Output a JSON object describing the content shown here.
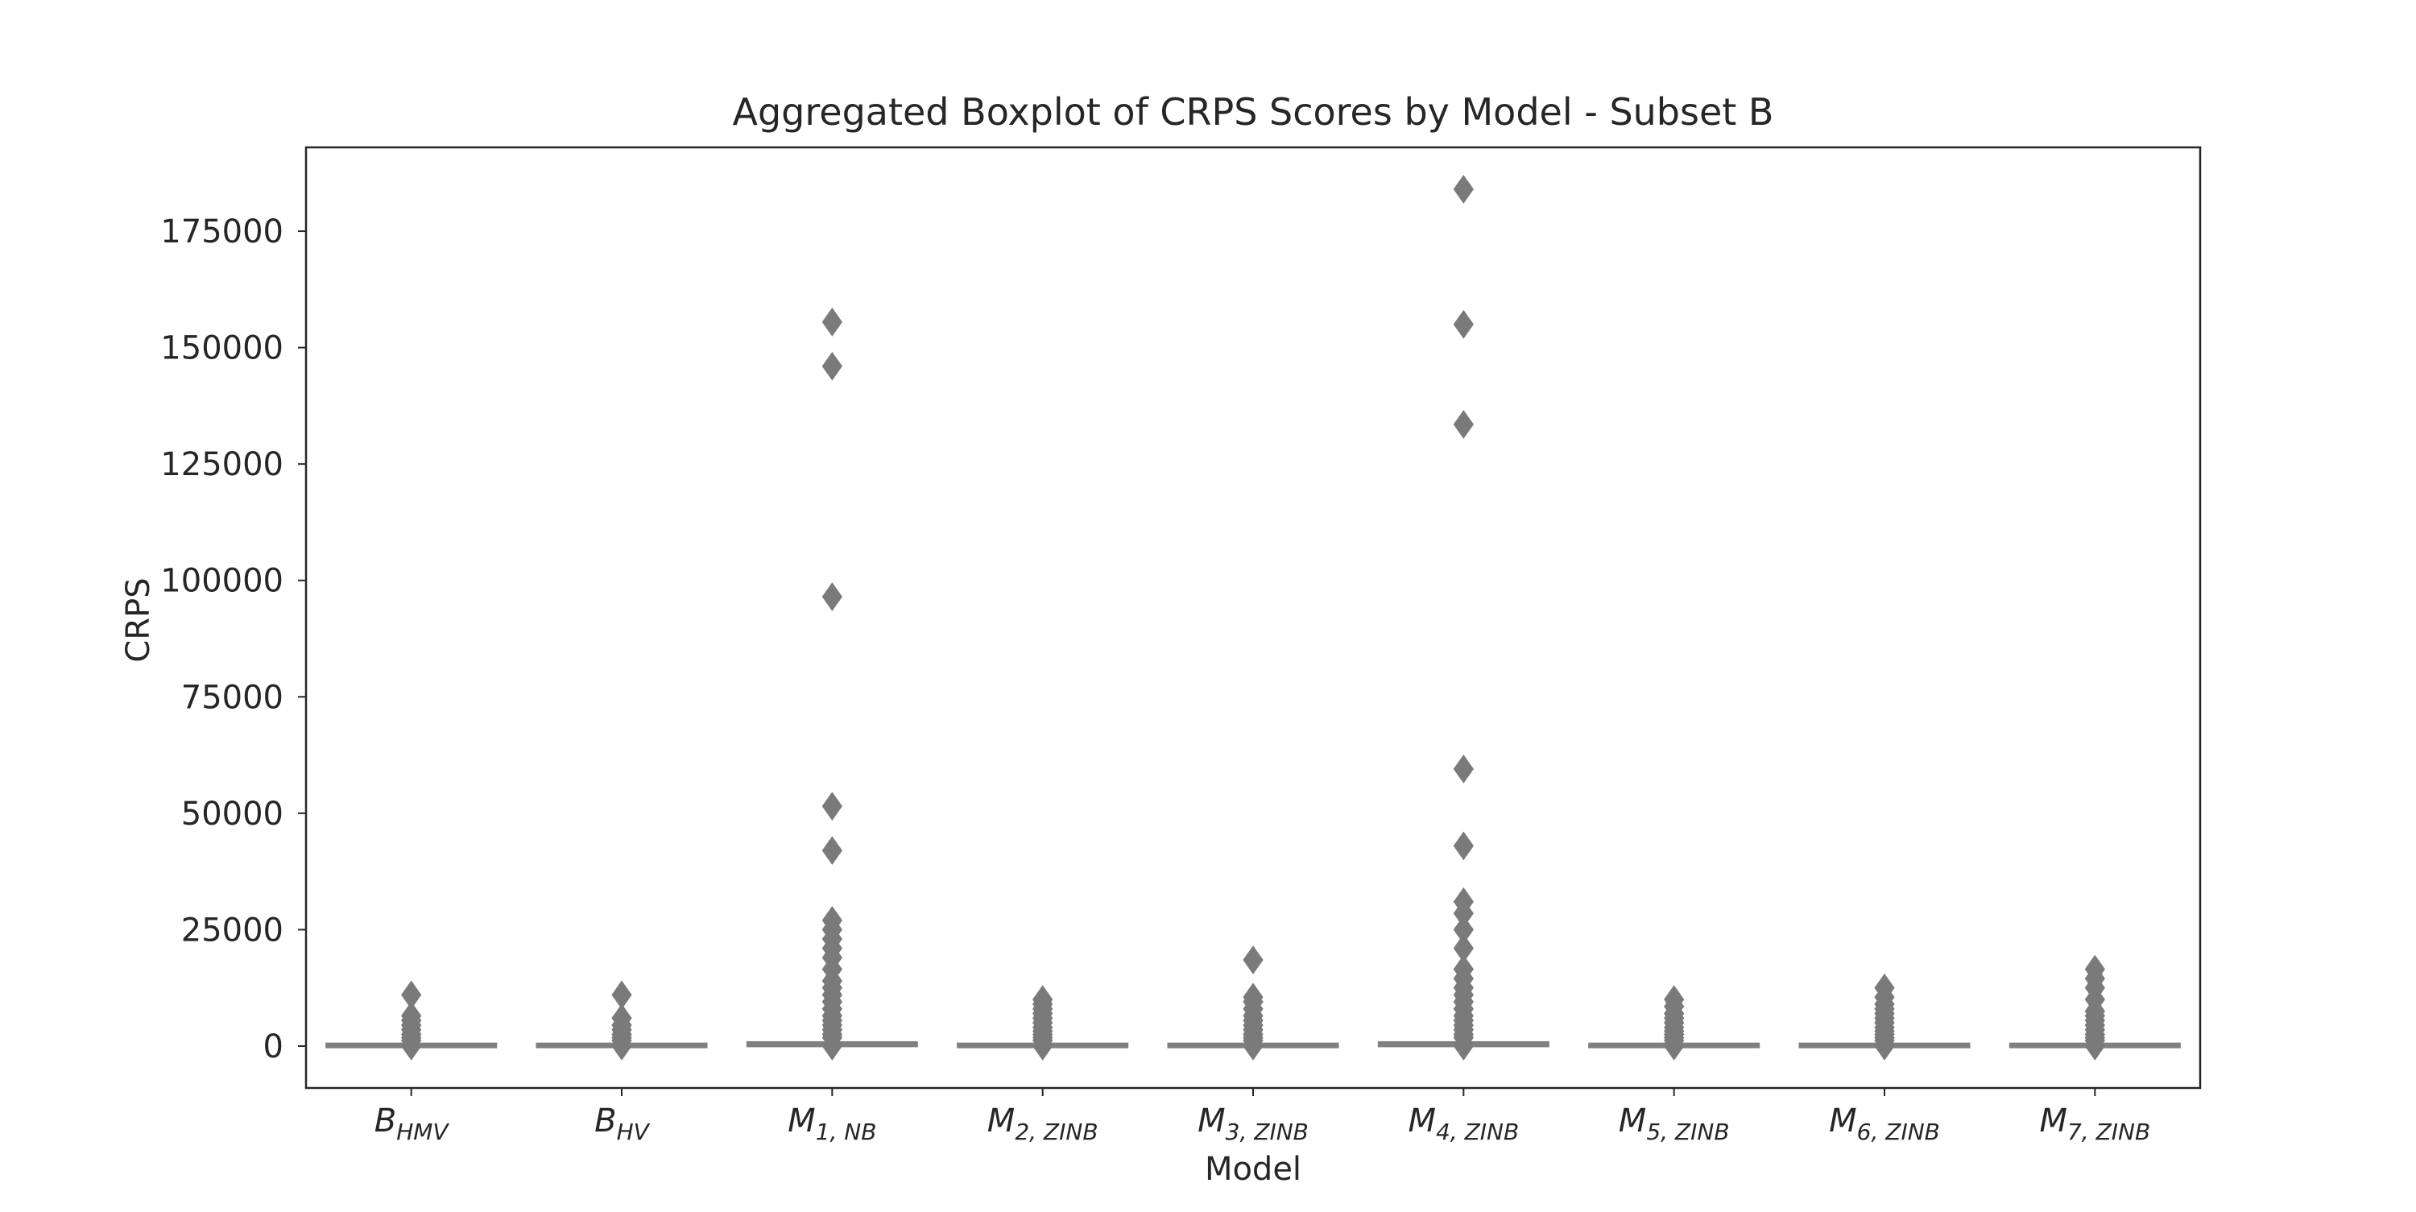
{
  "chart_data": {
    "type": "boxplot",
    "title": "Aggregated Boxplot of CRPS Scores by Model - Subset B",
    "xlabel": "Model",
    "ylabel": "CRPS",
    "ylim": [
      -9000,
      193000
    ],
    "yticks": [
      0,
      25000,
      50000,
      75000,
      100000,
      125000,
      150000,
      175000
    ],
    "grid": false,
    "colors": {
      "box": "#808080",
      "outlier": "#7a7a7a",
      "axis": "#262626"
    },
    "categories": [
      {
        "base": "B",
        "sub": "HMV"
      },
      {
        "base": "B",
        "sub": "HV"
      },
      {
        "base": "M",
        "sub": "1, NB"
      },
      {
        "base": "M",
        "sub": "2, ZINB"
      },
      {
        "base": "M",
        "sub": "3, ZINB"
      },
      {
        "base": "M",
        "sub": "4, ZINB"
      },
      {
        "base": "M",
        "sub": "5, ZINB"
      },
      {
        "base": "M",
        "sub": "6, ZINB"
      },
      {
        "base": "M",
        "sub": "7, ZINB"
      }
    ],
    "series": [
      {
        "q1": 50,
        "median": 150,
        "q3": 400,
        "whisker_low": 0,
        "whisker_high": 900,
        "outliers": [
          0,
          1200,
          1800,
          2500,
          3500,
          4500,
          5500,
          6500,
          11000
        ]
      },
      {
        "q1": 50,
        "median": 150,
        "q3": 400,
        "whisker_low": 0,
        "whisker_high": 900,
        "outliers": [
          0,
          1200,
          1800,
          2500,
          3500,
          4500,
          6000,
          11000
        ]
      },
      {
        "q1": 100,
        "median": 300,
        "q3": 700,
        "whisker_low": 0,
        "whisker_high": 1500,
        "outliers": [
          0,
          1800,
          2500,
          3500,
          4500,
          5500,
          6500,
          8000,
          9500,
          11000,
          12500,
          14000,
          16500,
          19000,
          21000,
          23000,
          25000,
          27000,
          42000,
          51500,
          96500,
          146000,
          155500
        ]
      },
      {
        "q1": 50,
        "median": 150,
        "q3": 400,
        "whisker_low": 0,
        "whisker_high": 900,
        "outliers": [
          0,
          1200,
          1800,
          2500,
          3200,
          4000,
          5000,
          6000,
          7000,
          8000,
          9000,
          10000
        ]
      },
      {
        "q1": 50,
        "median": 150,
        "q3": 400,
        "whisker_low": 0,
        "whisker_high": 900,
        "outliers": [
          0,
          1200,
          1800,
          2500,
          3500,
          4500,
          5500,
          6500,
          8000,
          9500,
          10500,
          18500
        ]
      },
      {
        "q1": 100,
        "median": 300,
        "q3": 700,
        "whisker_low": 0,
        "whisker_high": 1500,
        "outliers": [
          0,
          1800,
          2500,
          3500,
          4500,
          5500,
          6500,
          8000,
          9500,
          11000,
          12500,
          14500,
          16500,
          21000,
          25000,
          28500,
          31000,
          43000,
          59500,
          133500,
          155000,
          184000
        ]
      },
      {
        "q1": 50,
        "median": 150,
        "q3": 400,
        "whisker_low": 0,
        "whisker_high": 900,
        "outliers": [
          0,
          1200,
          1800,
          2500,
          3200,
          4000,
          5000,
          6000,
          7000,
          8500,
          10000
        ]
      },
      {
        "q1": 50,
        "median": 150,
        "q3": 400,
        "whisker_low": 0,
        "whisker_high": 900,
        "outliers": [
          0,
          1200,
          1800,
          2500,
          3200,
          4000,
          5000,
          6000,
          7000,
          8000,
          9000,
          10500,
          12500
        ]
      },
      {
        "q1": 50,
        "median": 150,
        "q3": 400,
        "whisker_low": 0,
        "whisker_high": 900,
        "outliers": [
          0,
          1200,
          1800,
          2500,
          3500,
          4500,
          5500,
          6500,
          7500,
          10000,
          12500,
          14500,
          16500
        ]
      }
    ]
  }
}
